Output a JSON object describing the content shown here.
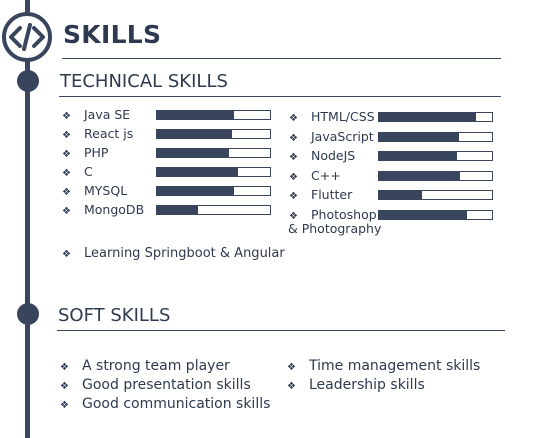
{
  "header": {
    "title": "SKILLS",
    "icon": "code-icon"
  },
  "technical": {
    "title": "TECHNICAL SKILLS",
    "left": [
      {
        "label": "Java SE",
        "level": 0.68
      },
      {
        "label": "React js",
        "level": 0.66
      },
      {
        "label": "PHP",
        "level": 0.64
      },
      {
        "label": "C",
        "level": 0.72
      },
      {
        "label": "MYSQL",
        "level": 0.68
      },
      {
        "label": "MongoDB",
        "level": 0.36
      }
    ],
    "right": [
      {
        "label": "HTML/CSS",
        "level": 0.86
      },
      {
        "label": "JavaScript",
        "level": 0.71
      },
      {
        "label": "NodeJS",
        "level": 0.69
      },
      {
        "label": "C++",
        "level": 0.72
      },
      {
        "label": "Flutter",
        "level": 0.38
      },
      {
        "label": "Photoshop",
        "label_cont": "& Photography",
        "level": 0.78
      }
    ],
    "learning": "Learning Springboot & Angular"
  },
  "soft": {
    "title": "SOFT SKILLS",
    "left": [
      "A strong team player",
      "Good presentation skills",
      "Good communication skills"
    ],
    "right": [
      "Time management skills",
      "Leadership skills"
    ]
  },
  "colors": {
    "primary": "#39455c",
    "text": "#2e3a4f"
  }
}
